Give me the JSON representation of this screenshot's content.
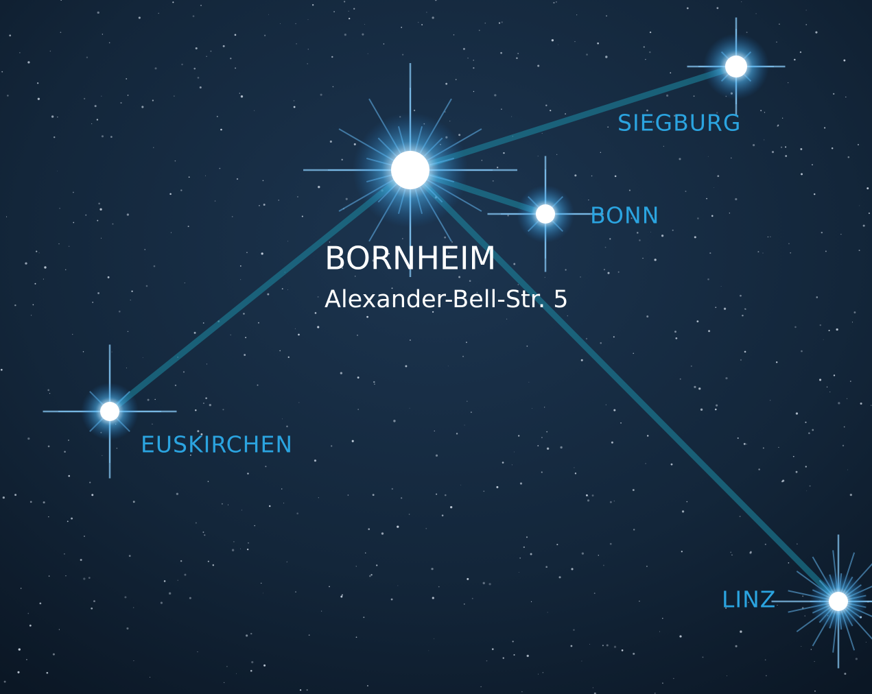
{
  "hub": {
    "name": "BORNHEIM",
    "address": "Alexander-Bell-Str. 5"
  },
  "locations": [
    {
      "name": "SIEGBURG"
    },
    {
      "name": "BONN"
    },
    {
      "name": "EUSKIRCHEN"
    },
    {
      "name": "LINZ"
    }
  ]
}
